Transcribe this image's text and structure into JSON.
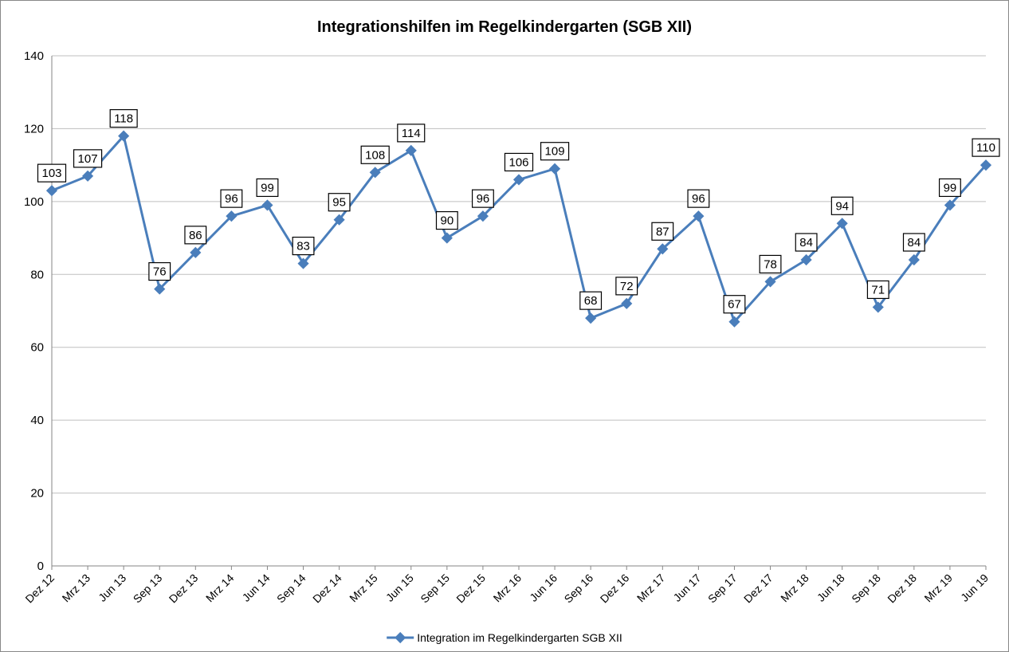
{
  "chart_data": {
    "type": "line",
    "title": "Integrationshilfen im Regelkindergarten (SGB XII)",
    "categories": [
      "Dez 12",
      "Mrz 13",
      "Jun 13",
      "Sep 13",
      "Dez 13",
      "Mrz 14",
      "Jun 14",
      "Sep 14",
      "Dez 14",
      "Mrz 15",
      "Jun 15",
      "Sep 15",
      "Dez 15",
      "Mrz 16",
      "Jun 16",
      "Sep 16",
      "Dez 16",
      "Mrz 17",
      "Jun 17",
      "Sep 17",
      "Dez 17",
      "Mrz 18",
      "Jun 18",
      "Sep 18",
      "Dez 18",
      "Mrz 19",
      "Jun 19"
    ],
    "series": [
      {
        "name": "Integration im Regelkindergarten SGB XII",
        "color": "#4a7ebb",
        "values": [
          103,
          107,
          118,
          76,
          86,
          96,
          99,
          83,
          95,
          108,
          114,
          90,
          96,
          106,
          109,
          68,
          72,
          87,
          96,
          67,
          78,
          84,
          94,
          71,
          84,
          99,
          110
        ]
      }
    ],
    "ylim": [
      0,
      140
    ],
    "yticks": [
      0,
      20,
      40,
      60,
      80,
      100,
      120,
      140
    ],
    "grid": true,
    "legend": "bottom"
  }
}
